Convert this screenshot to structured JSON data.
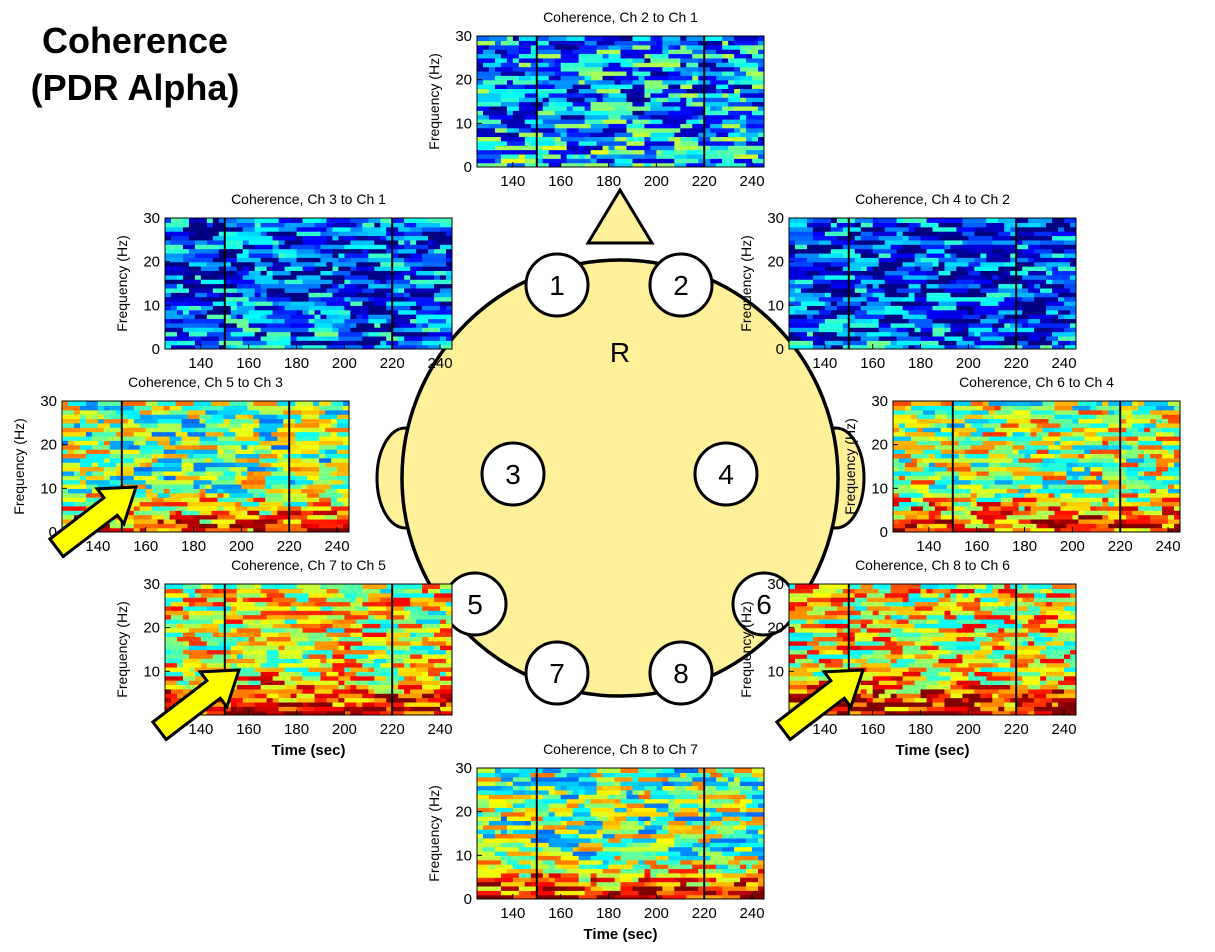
{
  "figure": {
    "title_lines": [
      "Coherence",
      "(PDR Alpha)"
    ],
    "head_label": "R"
  },
  "electrodes": [
    "1",
    "2",
    "3",
    "4",
    "5",
    "6",
    "7",
    "8"
  ],
  "colors": {
    "head_fill": "#fff09a",
    "arrow_fill": "#ffff00",
    "outline": "#000000"
  },
  "chart_data": [
    {
      "type": "heatmap",
      "title": "Coherence, Ch 2 to Ch 1",
      "xlabel": "",
      "ylabel": "Frequency (Hz)",
      "xlim": [
        125,
        245
      ],
      "ylim": [
        0,
        30
      ],
      "xticks": [
        140,
        160,
        180,
        200,
        220,
        240
      ],
      "yticks": [
        0,
        10,
        20,
        30
      ],
      "event_lines_x": [
        150,
        220
      ],
      "colormap": "jet",
      "level_description": "low coherence above ~8 Hz; high coherence band at 0-8 Hz before 150 s",
      "low_band_level": 0.35,
      "high_freq_level": 0.28,
      "arrow": false
    },
    {
      "type": "heatmap",
      "title": "Coherence, Ch 3 to Ch 1",
      "xlabel": "",
      "ylabel": "Frequency (Hz)",
      "xlim": [
        125,
        245
      ],
      "ylim": [
        0,
        30
      ],
      "xticks": [
        140,
        160,
        180,
        200,
        220,
        240
      ],
      "yticks": [
        0,
        10,
        20,
        30
      ],
      "event_lines_x": [
        150,
        220
      ],
      "colormap": "jet",
      "low_band_level": 0.25,
      "high_freq_level": 0.18,
      "arrow": false
    },
    {
      "type": "heatmap",
      "title": "Coherence, Ch 4 to Ch 2",
      "xlabel": "",
      "ylabel": "Frequency (Hz)",
      "xlim": [
        125,
        245
      ],
      "ylim": [
        0,
        30
      ],
      "xticks": [
        140,
        160,
        180,
        200,
        220,
        240
      ],
      "yticks": [
        0,
        10,
        20,
        30
      ],
      "event_lines_x": [
        150,
        220
      ],
      "colormap": "jet",
      "low_band_level": 0.22,
      "high_freq_level": 0.17,
      "arrow": false
    },
    {
      "type": "heatmap",
      "title": "Coherence, Ch 5 to Ch 3",
      "xlabel": "",
      "ylabel": "Frequency (Hz)",
      "xlim": [
        125,
        245
      ],
      "ylim": [
        0,
        30
      ],
      "xticks": [
        140,
        160,
        180,
        200,
        220,
        240
      ],
      "yticks": [
        0,
        10,
        20,
        30
      ],
      "event_lines_x": [
        150,
        220
      ],
      "colormap": "jet",
      "low_band_level": 0.82,
      "high_freq_level": 0.5,
      "arrow": true
    },
    {
      "type": "heatmap",
      "title": "Coherence, Ch 6 to Ch 4",
      "xlabel": "",
      "ylabel": "Frequency (Hz)",
      "xlim": [
        125,
        245
      ],
      "ylim": [
        0,
        30
      ],
      "xticks": [
        140,
        160,
        180,
        200,
        220,
        240
      ],
      "yticks": [
        0,
        10,
        20,
        30
      ],
      "event_lines_x": [
        150,
        220
      ],
      "colormap": "jet",
      "low_band_level": 0.85,
      "high_freq_level": 0.55,
      "arrow": false
    },
    {
      "type": "heatmap",
      "title": "Coherence, Ch 7 to Ch 5",
      "xlabel": "Time (sec)",
      "ylabel": "Frequency (Hz)",
      "xlim": [
        125,
        245
      ],
      "ylim": [
        0,
        30
      ],
      "xticks": [
        140,
        160,
        180,
        200,
        220,
        240
      ],
      "yticks": [
        10,
        20,
        30
      ],
      "event_lines_x": [
        150,
        220
      ],
      "colormap": "jet",
      "low_band_level": 0.95,
      "high_freq_level": 0.6,
      "arrow": true
    },
    {
      "type": "heatmap",
      "title": "Coherence, Ch 8 to Ch 6",
      "xlabel": "Time (sec)",
      "ylabel": "Frequency (Hz)",
      "xlim": [
        125,
        245
      ],
      "ylim": [
        0,
        30
      ],
      "xticks": [
        140,
        160,
        180,
        200,
        220,
        240
      ],
      "yticks": [
        10,
        20,
        30
      ],
      "event_lines_x": [
        150,
        220
      ],
      "colormap": "jet",
      "low_band_level": 0.93,
      "high_freq_level": 0.62,
      "arrow": true
    },
    {
      "type": "heatmap",
      "title": "Coherence, Ch 8 to Ch 7",
      "xlabel": "Time (sec)",
      "ylabel": "Frequency (Hz)",
      "xlim": [
        125,
        245
      ],
      "ylim": [
        0,
        30
      ],
      "xticks": [
        140,
        160,
        180,
        200,
        220,
        240
      ],
      "yticks": [
        0,
        10,
        20,
        30
      ],
      "event_lines_x": [
        150,
        220
      ],
      "colormap": "jet",
      "low_band_level": 0.92,
      "high_freq_level": 0.5,
      "arrow": false
    }
  ]
}
